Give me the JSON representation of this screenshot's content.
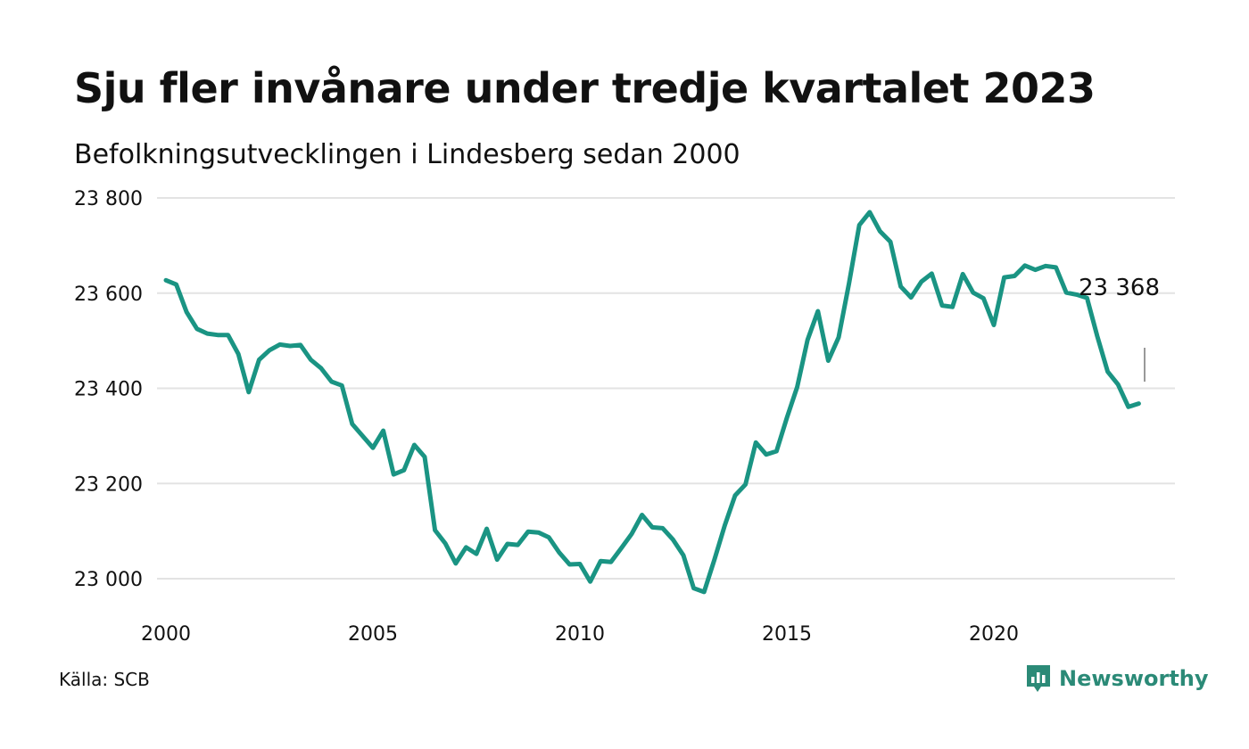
{
  "title": "Sju fler invånare under tredje kvartalet 2023",
  "subtitle": "Befolkningsutvecklingen i Lindesberg sedan 2000",
  "source": "Källa: SCB",
  "brand": "Newsworthy",
  "colors": {
    "line": "#1a9483",
    "grid": "#e3e3e3",
    "brand": "#2b8a77"
  },
  "chart_data": {
    "type": "line",
    "x_start_year": 2000,
    "x_step_quarters": 1,
    "ylim": [
      22950,
      23800
    ],
    "xlim": [
      2000,
      2024.25
    ],
    "y_ticks": [
      23000,
      23200,
      23400,
      23600,
      23800
    ],
    "y_tick_labels": [
      "23 000",
      "23 200",
      "23 400",
      "23 600",
      "23 800"
    ],
    "x_ticks": [
      2000,
      2005,
      2010,
      2015,
      2020
    ],
    "x_tick_labels": [
      "2000",
      "2005",
      "2010",
      "2015",
      "2020"
    ],
    "grid": true,
    "end_label": "23 368",
    "values": [
      23627,
      23618,
      23560,
      23525,
      23515,
      23512,
      23512,
      23472,
      23392,
      23460,
      23480,
      23492,
      23489,
      23491,
      23460,
      23442,
      23414,
      23406,
      23325,
      23300,
      23275,
      23311,
      23219,
      23228,
      23281,
      23256,
      23102,
      23074,
      23032,
      23066,
      23052,
      23105,
      23040,
      23073,
      23071,
      23099,
      23097,
      23087,
      23055,
      23030,
      23031,
      22994,
      23037,
      23035,
      23064,
      23094,
      23134,
      23108,
      23106,
      23082,
      23049,
      22980,
      22972,
      23040,
      23112,
      23175,
      23198,
      23286,
      23261,
      23268,
      23338,
      23403,
      23502,
      23562,
      23458,
      23507,
      23620,
      23743,
      23770,
      23730,
      23708,
      23614,
      23591,
      23624,
      23641,
      23574,
      23571,
      23640,
      23601,
      23589,
      23533,
      23633,
      23636,
      23658,
      23649,
      23657,
      23654,
      23601,
      23597,
      23590,
      23509,
      23435,
      23408,
      23361,
      23368
    ]
  }
}
